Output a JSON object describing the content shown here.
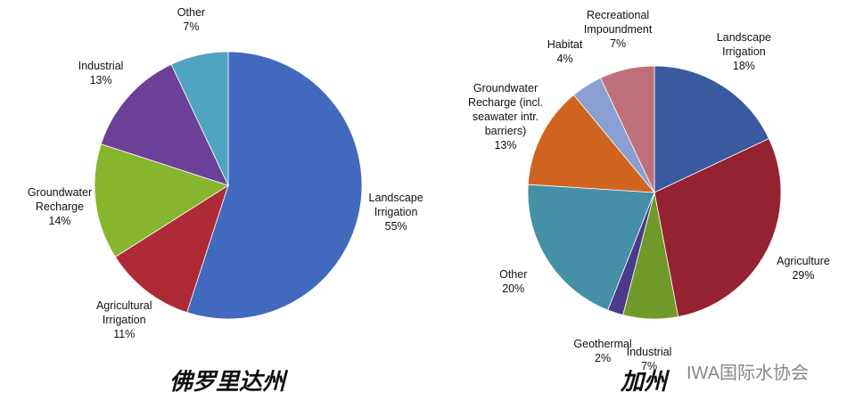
{
  "chart_data": [
    {
      "type": "pie",
      "title": "佛罗里达州",
      "categories": [
        "Landscape Irrigation",
        "Agricultural Irrigation",
        "Groundwater Recharge",
        "Industrial",
        "Other"
      ],
      "values": [
        55,
        11,
        14,
        13,
        7
      ],
      "value_labels": [
        "55%",
        "11%",
        "14%",
        "13%",
        "7%"
      ],
      "colors": [
        "#4169be",
        "#ae2a37",
        "#87b52d",
        "#6c3f99",
        "#4fa5c1"
      ]
    },
    {
      "type": "pie",
      "title": "加州",
      "categories": [
        "Landscape Irrigation",
        "Agriculture",
        "Industrial",
        "Geothermal",
        "Other",
        "Groundwater Recharge (incl. seawater intr. barriers)",
        "Habitat",
        "Recreational Impoundment"
      ],
      "values": [
        18,
        29,
        7,
        2,
        20,
        13,
        4,
        7
      ],
      "value_labels": [
        "18%",
        "29%",
        "7%",
        "2%",
        "20%",
        "13%",
        "4%",
        "7%"
      ],
      "colors": [
        "#3a5a9f",
        "#952230",
        "#6f9a2a",
        "#4b3a8a",
        "#4590a6",
        "#d0631f",
        "#8a9fd2",
        "#c0707a"
      ]
    }
  ],
  "watermark": "IWA国际水协会"
}
